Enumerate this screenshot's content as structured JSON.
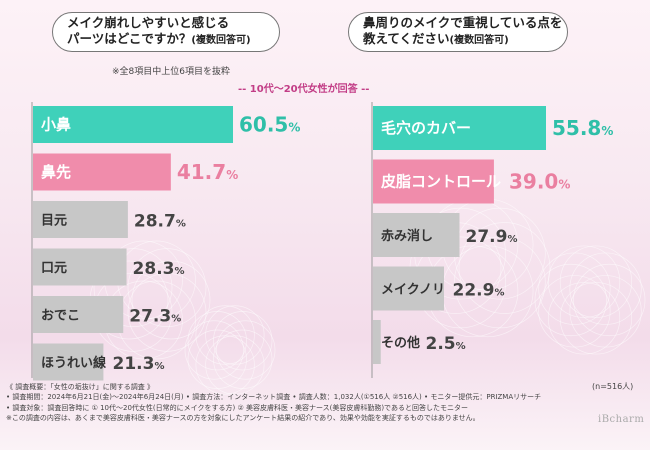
{
  "subtitle": "-- 10代～20代女性が回答 --",
  "sample_size": "(n=516人)",
  "brand": "iBcharm",
  "colors": {
    "teal": "#3fd1ba",
    "pink": "#f08cab",
    "gray": "#c7c7c7",
    "teal_text": "#2fbfa8",
    "pink_text": "#ea7fa0",
    "gray_text": "#444444"
  },
  "left": {
    "question_line1": "メイク崩れしやすいと感じる",
    "question_line2": "パーツはどこですか？",
    "question_note": "(複数回答可)",
    "note": "※全8項目中上位6項目を抜粋"
  },
  "right": {
    "question_line1": "鼻周りのメイクで重視している点を",
    "question_line2": "教えてください",
    "question_note": "(複数回答可)"
  },
  "chart_data": [
    {
      "type": "bar",
      "orientation": "horizontal",
      "title": "メイク崩れしやすいと感じるパーツはどこですか？(複数回答可)",
      "categories": [
        "小鼻",
        "鼻先",
        "目元",
        "口元",
        "おでこ",
        "ほうれい線"
      ],
      "values": [
        60.5,
        41.7,
        28.7,
        28.3,
        27.3,
        21.3
      ],
      "value_labels": [
        "60.5",
        "41.7",
        "28.7",
        "28.3",
        "27.3",
        "21.3"
      ],
      "unit": "%",
      "bar_colors": [
        "teal",
        "pink",
        "gray",
        "gray",
        "gray",
        "gray"
      ]
    },
    {
      "type": "bar",
      "orientation": "horizontal",
      "title": "鼻周りのメイクで重視している点を教えてください(複数回答可)",
      "categories": [
        "毛穴のカバー",
        "皮脂コントロール",
        "赤み消し",
        "メイクノリ",
        "その他"
      ],
      "values": [
        55.8,
        39.0,
        27.9,
        22.9,
        2.5
      ],
      "value_labels": [
        "55.8",
        "39.0",
        "27.9",
        "22.9",
        "2.5"
      ],
      "unit": "%",
      "bar_colors": [
        "teal",
        "pink",
        "gray",
        "gray",
        "gray"
      ]
    }
  ],
  "footnotes": [
    "《 調査概要：「女性の垢抜け」に関する調査 》",
    "• 調査期間：2024年6月21日(金)～2024年6月24日(月)  • 調査方法：インターネット調査  • 調査人数：1,032人(①516人 ②516人)  • モニター提供元：PRIZMAリサーチ",
    "• 調査対象：調査回答時に ① 10代～20代女性(日常的にメイクをする方) ② 美容皮膚科医・美容ナース(美容皮膚科勤務)であると回答したモニター",
    "※この調査の内容は、あくまで美容皮膚科医・美容ナースの方を対象にしたアンケート結果の紹介であり、効果や効能を実証するものではありません。"
  ]
}
